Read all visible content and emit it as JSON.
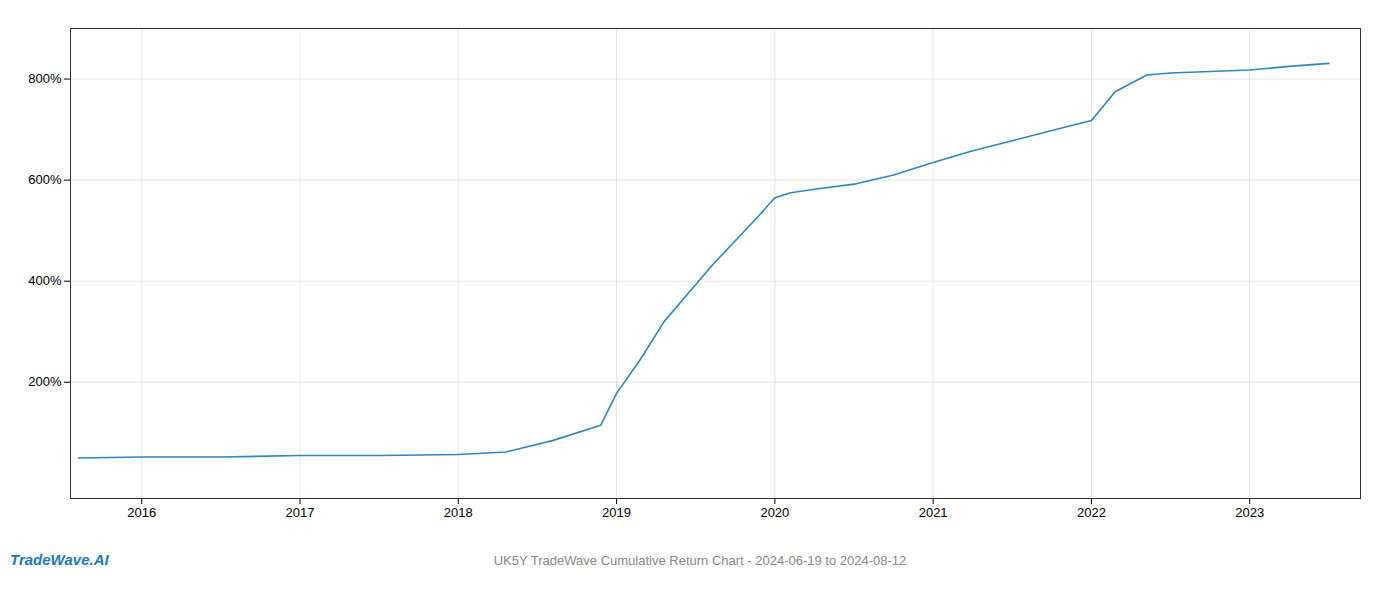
{
  "chart_data": {
    "type": "line",
    "title": "UK5Y TradeWave Cumulative Return Chart - 2024-06-19 to 2024-08-12",
    "annotations": [
      "TradeWave.AI"
    ],
    "x": [
      2015.6,
      2016.0,
      2016.5,
      2017.0,
      2017.5,
      2018.0,
      2018.3,
      2018.6,
      2018.9,
      2019.0,
      2019.15,
      2019.3,
      2019.6,
      2019.9,
      2020.0,
      2020.1,
      2020.25,
      2020.5,
      2020.75,
      2021.0,
      2021.25,
      2021.5,
      2021.75,
      2022.0,
      2022.15,
      2022.35,
      2022.5,
      2022.75,
      2023.0,
      2023.25,
      2023.5
    ],
    "values": [
      50,
      52,
      52,
      55,
      55,
      57,
      62,
      85,
      115,
      178,
      245,
      320,
      430,
      530,
      565,
      575,
      582,
      592,
      610,
      635,
      658,
      678,
      698,
      718,
      775,
      808,
      812,
      815,
      818,
      825,
      831
    ],
    "color": "#2e86c1",
    "xlim": [
      2015.55,
      2023.7
    ],
    "ylim": [
      -30,
      900
    ],
    "xticks": [
      2016,
      2017,
      2018,
      2019,
      2020,
      2021,
      2022,
      2023
    ],
    "yticks": [
      {
        "value": 200,
        "label": "200%"
      },
      {
        "value": 400,
        "label": "400%"
      },
      {
        "value": 600,
        "label": "600%"
      },
      {
        "value": 800,
        "label": "800%"
      }
    ],
    "grid": true
  }
}
